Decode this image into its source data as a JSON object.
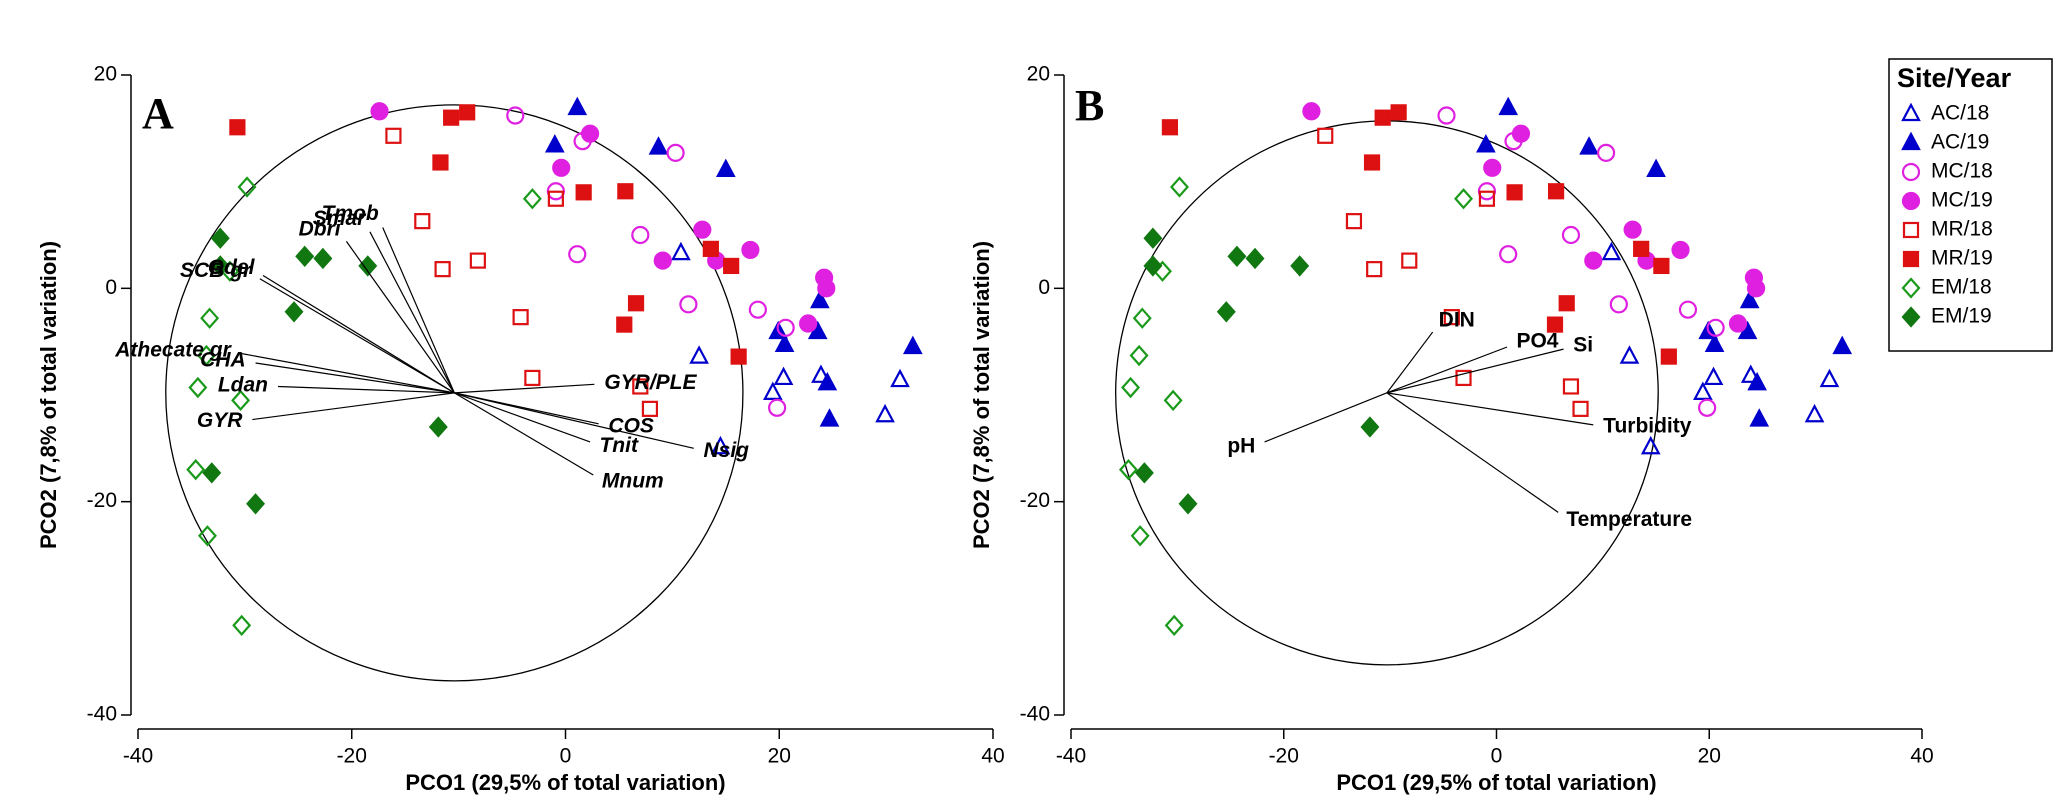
{
  "chart_data": [
    {
      "type": "scatter",
      "title": "A",
      "xlabel": "PCO1 (29,5% of total variation)",
      "ylabel": "PCO2 (7,8% of total variation)",
      "xlim": [
        -40,
        40
      ],
      "ylim": [
        -40,
        20
      ],
      "xticks": [
        -40,
        -20,
        0,
        20,
        40
      ],
      "yticks": [
        -40,
        -20,
        0,
        20
      ],
      "circle": {
        "center": [
          -10.4,
          -9.8
        ],
        "radius": 27
      },
      "vectors": [
        {
          "label": "Tmob",
          "end": [
            -17.1,
            5.7
          ]
        },
        {
          "label": "Smar",
          "end": [
            -18.3,
            5.3
          ]
        },
        {
          "label": "Dbri",
          "end": [
            -20.5,
            4.4
          ]
        },
        {
          "label": "Gdel",
          "end": [
            -28.3,
            1.2
          ]
        },
        {
          "label": "SCB gr",
          "end": [
            -28.6,
            0.9
          ]
        },
        {
          "label": "Athecate gr",
          "end": [
            -30.4,
            -6.1
          ]
        },
        {
          "label": "CHA",
          "end": [
            -29.0,
            -7.0
          ]
        },
        {
          "label": "Ldan",
          "end": [
            -26.9,
            -9.2
          ]
        },
        {
          "label": "GYR",
          "end": [
            -29.3,
            -12.3
          ]
        },
        {
          "label": "GYR/PLE",
          "end": [
            2.7,
            -9.0
          ]
        },
        {
          "label": "COS",
          "end": [
            3.1,
            -12.7
          ]
        },
        {
          "label": "Tnit",
          "end": [
            2.3,
            -14.4
          ]
        },
        {
          "label": "Mnum",
          "end": [
            2.6,
            -17.5
          ]
        },
        {
          "label": "Nsig",
          "end": [
            12.0,
            -15.0
          ]
        }
      ],
      "series": [
        {
          "name": "AC/18",
          "color": "#0000cc",
          "marker": "triangle",
          "filled": false,
          "x": [
            10.8,
            12.5,
            20.4,
            19.4,
            23.9,
            31.3,
            29.9,
            14.5
          ],
          "y": [
            3.3,
            -6.4,
            -8.4,
            -9.8,
            -8.2,
            -8.6,
            -11.9,
            -14.9
          ]
        },
        {
          "name": "AC/19",
          "color": "#0000cc",
          "marker": "triangle",
          "filled": true,
          "x": [
            1.1,
            -1.0,
            8.7,
            15.0,
            19.9,
            20.5,
            23.6,
            23.8,
            24.5,
            24.7,
            32.5
          ],
          "y": [
            16.9,
            13.4,
            13.2,
            11.1,
            -4.1,
            -5.3,
            -4.1,
            -1.2,
            -8.9,
            -12.3,
            -5.5
          ]
        },
        {
          "name": "MC/18",
          "color": "#e020e0",
          "marker": "circle",
          "filled": false,
          "x": [
            -4.7,
            1.6,
            10.3,
            -0.9,
            1.1,
            7.0,
            11.5,
            18.0,
            20.6,
            19.8
          ],
          "y": [
            16.2,
            13.8,
            12.7,
            9.1,
            3.2,
            5.0,
            -1.5,
            -2.0,
            -3.7,
            -11.2
          ]
        },
        {
          "name": "MC/19",
          "color": "#e020e0",
          "marker": "circle",
          "filled": true,
          "x": [
            -17.4,
            2.3,
            -0.4,
            12.8,
            9.1,
            17.3,
            14.1,
            22.7,
            24.2,
            24.4
          ],
          "y": [
            16.6,
            14.5,
            11.3,
            5.5,
            2.6,
            3.6,
            2.6,
            -3.3,
            1.0,
            0.0
          ]
        },
        {
          "name": "MR/18",
          "color": "#dd1111",
          "marker": "square",
          "filled": false,
          "x": [
            -16.1,
            -13.4,
            -11.5,
            -8.2,
            -0.9,
            -4.2,
            -3.1,
            7.0,
            7.9
          ],
          "y": [
            14.3,
            6.3,
            1.8,
            2.6,
            8.4,
            -2.7,
            -8.4,
            -9.2,
            -11.3
          ]
        },
        {
          "name": "MR/19",
          "color": "#dd1111",
          "marker": "square",
          "filled": true,
          "x": [
            -30.7,
            -10.7,
            -9.2,
            -11.7,
            1.7,
            5.6,
            13.6,
            15.5,
            16.2,
            6.6,
            5.5
          ],
          "y": [
            15.1,
            16.0,
            16.5,
            11.8,
            9.0,
            9.1,
            3.7,
            2.1,
            -6.4,
            -1.4,
            -3.4
          ]
        },
        {
          "name": "EM/18",
          "color": "#1a9a1a",
          "marker": "diamond",
          "filled": false,
          "x": [
            -29.8,
            -3.1,
            -31.4,
            -33.3,
            -33.6,
            -34.4,
            -30.4,
            -34.6,
            -33.5,
            -30.3
          ],
          "y": [
            9.5,
            8.4,
            1.6,
            -2.8,
            -6.3,
            -9.3,
            -10.5,
            -17.0,
            -23.2,
            -31.6
          ]
        },
        {
          "name": "EM/19",
          "color": "#117711",
          "marker": "diamond",
          "filled": true,
          "x": [
            -32.3,
            -32.3,
            -24.4,
            -22.7,
            -18.5,
            -25.4,
            -11.9,
            -33.1,
            -29.0
          ],
          "y": [
            4.7,
            2.1,
            3.0,
            2.8,
            2.1,
            -2.2,
            -13.0,
            -17.3,
            -20.2
          ]
        }
      ]
    },
    {
      "type": "scatter",
      "title": "B",
      "xlabel": "PCO1 (29,5% of total variation)",
      "ylabel": "PCO2 (7,8% of total variation)",
      "xlim": [
        -40,
        40
      ],
      "ylim": [
        -40,
        20
      ],
      "xticks": [
        -40,
        -20,
        0,
        20,
        40
      ],
      "yticks": [
        -40,
        -20,
        0,
        20
      ],
      "legend": "upper right",
      "legend_title": "Site/Year",
      "circle": {
        "center": [
          -10.3,
          -9.8
        ],
        "radius": 25.5
      },
      "vectors": [
        {
          "label": "DIN",
          "end": [
            -6.0,
            -4.1
          ]
        },
        {
          "label": "PO4",
          "end": [
            1.0,
            -5.5
          ]
        },
        {
          "label": "Si",
          "end": [
            6.3,
            -5.7
          ]
        },
        {
          "label": "Turbidity",
          "end": [
            9.1,
            -12.8
          ]
        },
        {
          "label": "Temperature",
          "end": [
            5.8,
            -21.0
          ]
        },
        {
          "label": "pH",
          "end": [
            -21.8,
            -14.4
          ]
        }
      ],
      "series": [
        {
          "name": "AC/18",
          "color": "#0000cc",
          "marker": "triangle",
          "filled": false,
          "x": [
            10.8,
            12.5,
            20.4,
            19.4,
            23.9,
            31.3,
            29.9,
            14.5
          ],
          "y": [
            3.3,
            -6.4,
            -8.4,
            -9.8,
            -8.2,
            -8.6,
            -11.9,
            -14.9
          ]
        },
        {
          "name": "AC/19",
          "color": "#0000cc",
          "marker": "triangle",
          "filled": true,
          "x": [
            1.1,
            -1.0,
            8.7,
            15.0,
            19.9,
            20.5,
            23.6,
            23.8,
            24.5,
            24.7,
            32.5
          ],
          "y": [
            16.9,
            13.4,
            13.2,
            11.1,
            -4.1,
            -5.3,
            -4.1,
            -1.2,
            -8.9,
            -12.3,
            -5.5
          ]
        },
        {
          "name": "MC/18",
          "color": "#e020e0",
          "marker": "circle",
          "filled": false,
          "x": [
            -4.7,
            1.6,
            10.3,
            -0.9,
            1.1,
            7.0,
            11.5,
            18.0,
            20.6,
            19.8
          ],
          "y": [
            16.2,
            13.8,
            12.7,
            9.1,
            3.2,
            5.0,
            -1.5,
            -2.0,
            -3.7,
            -11.2
          ]
        },
        {
          "name": "MC/19",
          "color": "#e020e0",
          "marker": "circle",
          "filled": true,
          "x": [
            -17.4,
            2.3,
            -0.4,
            12.8,
            9.1,
            17.3,
            14.1,
            22.7,
            24.2,
            24.4
          ],
          "y": [
            16.6,
            14.5,
            11.3,
            5.5,
            2.6,
            3.6,
            2.6,
            -3.3,
            1.0,
            0.0
          ]
        },
        {
          "name": "MR/18",
          "color": "#dd1111",
          "marker": "square",
          "filled": false,
          "x": [
            -16.1,
            -13.4,
            -11.5,
            -8.2,
            -0.9,
            -4.2,
            -3.1,
            7.0,
            7.9
          ],
          "y": [
            14.3,
            6.3,
            1.8,
            2.6,
            8.4,
            -2.7,
            -8.4,
            -9.2,
            -11.3
          ]
        },
        {
          "name": "MR/19",
          "color": "#dd1111",
          "marker": "square",
          "filled": true,
          "x": [
            -30.7,
            -10.7,
            -9.2,
            -11.7,
            1.7,
            5.6,
            13.6,
            15.5,
            16.2,
            6.6,
            5.5
          ],
          "y": [
            15.1,
            16.0,
            16.5,
            11.8,
            9.0,
            9.1,
            3.7,
            2.1,
            -6.4,
            -1.4,
            -3.4
          ]
        },
        {
          "name": "EM/18",
          "color": "#1a9a1a",
          "marker": "diamond",
          "filled": false,
          "x": [
            -29.8,
            -3.1,
            -31.4,
            -33.3,
            -33.6,
            -34.4,
            -30.4,
            -34.6,
            -33.5,
            -30.3
          ],
          "y": [
            9.5,
            8.4,
            1.6,
            -2.8,
            -6.3,
            -9.3,
            -10.5,
            -17.0,
            -23.2,
            -31.6
          ]
        },
        {
          "name": "EM/19",
          "color": "#117711",
          "marker": "diamond",
          "filled": true,
          "x": [
            -32.3,
            -32.3,
            -24.4,
            -22.7,
            -18.5,
            -25.4,
            -11.9,
            -33.1,
            -29.0
          ],
          "y": [
            4.7,
            2.1,
            3.0,
            2.8,
            2.1,
            -2.2,
            -13.0,
            -17.3,
            -20.2
          ]
        }
      ]
    }
  ]
}
